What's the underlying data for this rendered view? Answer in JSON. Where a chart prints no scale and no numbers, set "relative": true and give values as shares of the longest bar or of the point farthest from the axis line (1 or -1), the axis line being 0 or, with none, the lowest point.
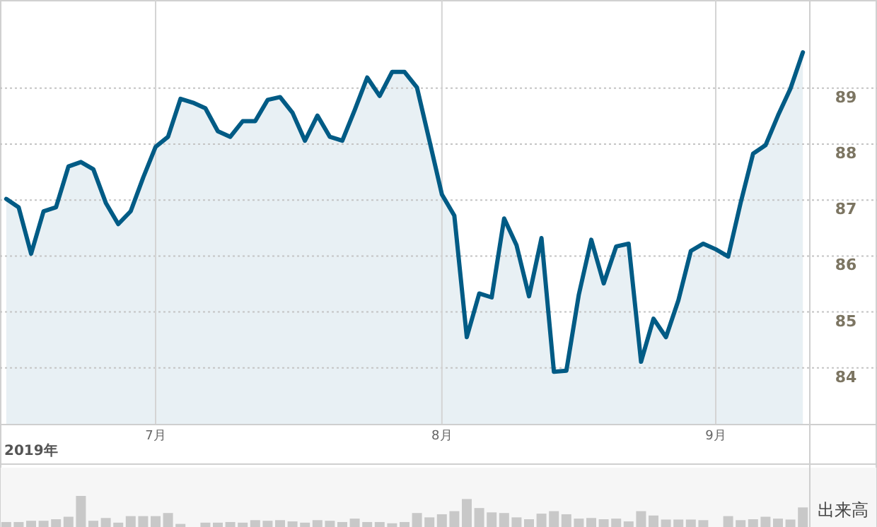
{
  "chart_data": [
    {
      "type": "area",
      "xlabel": "2019年",
      "categories": [
        null,
        null,
        null,
        null,
        null,
        null,
        null,
        null,
        null,
        null,
        null,
        null,
        "7月",
        null,
        null,
        null,
        null,
        null,
        null,
        null,
        null,
        null,
        null,
        null,
        null,
        null,
        null,
        null,
        null,
        null,
        null,
        null,
        null,
        null,
        null,
        "8月",
        null,
        null,
        null,
        null,
        null,
        null,
        null,
        null,
        null,
        null,
        null,
        null,
        null,
        null,
        null,
        null,
        null,
        null,
        null,
        null,
        null,
        "9月",
        null,
        null,
        null,
        null,
        null,
        null,
        null
      ],
      "series": [
        {
          "color": "#005b85",
          "values": [
            87.02,
            86.87,
            86.04,
            86.8,
            86.87,
            87.6,
            87.68,
            87.55,
            86.95,
            86.57,
            86.8,
            87.4,
            87.95,
            88.13,
            88.81,
            88.74,
            88.64,
            88.23,
            88.13,
            88.41,
            88.41,
            88.79,
            88.84,
            88.56,
            88.06,
            88.51,
            88.13,
            88.06,
            88.61,
            89.19,
            88.86,
            89.29,
            89.29,
            89.01,
            88.06,
            87.1,
            86.72,
            84.55,
            85.33,
            85.26,
            86.67,
            86.19,
            85.28,
            86.32,
            83.93,
            83.95,
            85.31,
            86.29,
            85.51,
            86.17,
            86.22,
            84.11,
            84.88,
            84.55,
            85.21,
            86.09,
            86.22,
            86.12,
            85.99,
            86.95,
            87.83,
            87.98,
            88.51,
            88.99,
            89.64
          ]
        }
      ],
      "ylim": [
        83,
        90.55
      ],
      "yticks": [
        84,
        85,
        86,
        87,
        88,
        89
      ],
      "grid": true
    },
    {
      "type": "bar",
      "relative": true,
      "ylabel": "出来高",
      "color": "#c8c8c8",
      "categories": [
        null,
        null,
        null,
        null,
        null,
        null,
        null,
        null,
        null,
        null,
        null,
        null,
        null,
        null,
        null,
        null,
        null,
        null,
        null,
        null,
        null,
        null,
        null,
        null,
        null,
        null,
        null,
        null,
        null,
        null,
        null,
        null,
        null,
        null,
        null,
        null,
        null,
        null,
        null,
        null,
        null,
        null,
        null,
        null,
        null,
        null,
        null,
        null,
        null,
        null,
        null,
        null,
        null,
        null,
        null,
        null,
        null,
        null,
        null,
        null,
        null,
        null,
        null,
        null,
        null
      ],
      "values": [
        0.16,
        0.16,
        0.2,
        0.2,
        0.25,
        0.33,
        1,
        0.2,
        0.29,
        0.14,
        0.35,
        0.35,
        0.35,
        0.45,
        0.1,
        0,
        0.14,
        0.14,
        0.16,
        0.14,
        0.22,
        0.2,
        0.22,
        0.18,
        0.14,
        0.22,
        0.2,
        0.16,
        0.27,
        0.16,
        0.16,
        0.12,
        0.16,
        0.45,
        0.31,
        0.41,
        0.51,
        0.9,
        0.61,
        0.47,
        0.45,
        0.31,
        0.25,
        0.43,
        0.51,
        0.41,
        0.27,
        0.29,
        0.25,
        0.27,
        0.18,
        0.51,
        0.37,
        0.24,
        0.24,
        0.24,
        0.22,
        0,
        0.35,
        0.22,
        0.25,
        0.33,
        0.27,
        0.24,
        0.63
      ]
    }
  ]
}
